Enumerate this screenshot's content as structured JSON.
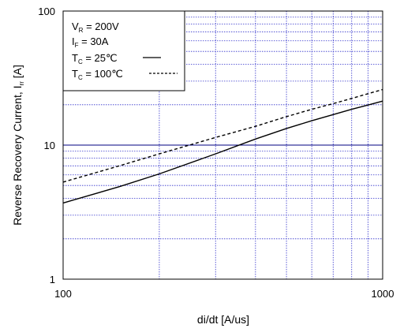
{
  "chart_data": {
    "type": "line",
    "xlabel": "di/dt [A/us]",
    "ylabel_main": "Reverse Recovery Current, I",
    "ylabel_sub": "rr",
    "ylabel_unit": "[A]",
    "xscale": "log",
    "yscale": "log",
    "xlim": [
      100,
      1000
    ],
    "ylim": [
      1,
      100
    ],
    "x_ticks": [
      {
        "value": 100,
        "label": "100"
      },
      {
        "value": 1000,
        "label": "1000"
      }
    ],
    "y_ticks": [
      {
        "value": 1,
        "label": "1"
      },
      {
        "value": 10,
        "label": "10"
      },
      {
        "value": 100,
        "label": "100"
      }
    ],
    "grid": true,
    "legend": {
      "placement": "top-left",
      "lines": [
        {
          "main": "V",
          "sub": "R",
          "rest": " = 200V"
        },
        {
          "main": "I",
          "sub": "F",
          "rest": " = 30A"
        },
        {
          "main": "T",
          "sub": "C",
          "rest": " =   25℃",
          "series": 0
        },
        {
          "main": "T",
          "sub": "C",
          "rest": " = 100℃",
          "series": 1
        }
      ]
    },
    "series": [
      {
        "name": "Tₓ = 25℃",
        "style": "solid",
        "x": [
          100,
          150,
          200,
          300,
          400,
          500,
          600,
          700,
          800,
          900,
          1000
        ],
        "y": [
          3.7,
          4.9,
          6.1,
          8.6,
          11.1,
          13.3,
          15.2,
          16.9,
          18.5,
          19.9,
          21.3
        ]
      },
      {
        "name": "Tₓ = 100℃",
        "style": "dashed",
        "x": [
          100,
          150,
          200,
          300,
          400,
          500,
          600,
          700,
          800,
          900,
          1000
        ],
        "y": [
          5.3,
          7.0,
          8.6,
          11.4,
          13.8,
          16.3,
          18.5,
          20.4,
          22.3,
          24.2,
          26.0
        ]
      }
    ],
    "colors": {
      "grid": "#3333cc",
      "major_grid": "#000080",
      "lines": "#000000"
    }
  }
}
